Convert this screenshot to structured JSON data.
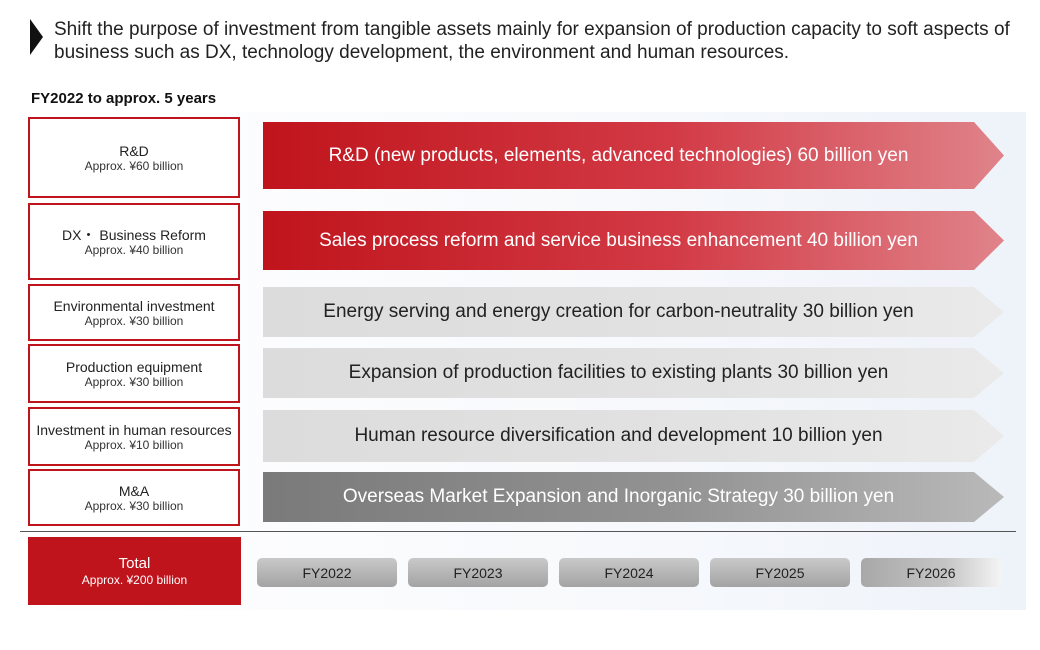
{
  "headline": "Shift the purpose of investment from tangible assets mainly for expansion of production capacity to soft aspects of business such as DX, technology development, the environment and human resources.",
  "period": "FY2022 to approx. 5 years",
  "categories": [
    {
      "name": "R&D",
      "amount": "Approx. ¥60 billion",
      "detail": "R&D (new products, elements, advanced technologies) 60 billion yen",
      "value": 60,
      "color": "#c0141c"
    },
    {
      "name": "DX・ Business Reform",
      "amount": "Approx. ¥40 billion",
      "detail": "Sales process reform and service business enhancement 40 billion yen",
      "value": 40,
      "color": "#c0141c"
    },
    {
      "name": "Environmental investment",
      "amount": "Approx. ¥30 billion",
      "detail": "Energy serving and energy creation for carbon-neutrality 30 billion yen",
      "value": 30,
      "color": "#dcdcdc"
    },
    {
      "name": "Production equipment",
      "amount": "Approx. ¥30  billion",
      "detail": "Expansion of production facilities to existing plants 30 billion yen",
      "value": 30,
      "color": "#dcdcdc"
    },
    {
      "name": "Investment in human resources",
      "amount": "Approx. ¥10 billion",
      "detail": "Human resource diversification and development 10 billion yen",
      "value": 10,
      "color": "#dcdcdc"
    },
    {
      "name": "M&A",
      "amount": "Approx. ¥30 billion",
      "detail": "Overseas Market Expansion and Inorganic Strategy 30 billion yen",
      "value": 30,
      "color": "#7a7a7a"
    }
  ],
  "total": {
    "name": "Total",
    "amount": "Approx. ¥200  billion",
    "value": 200
  },
  "years": [
    "FY2022",
    "FY2023",
    "FY2024",
    "FY2025",
    "FY2026"
  ],
  "colors": {
    "accent_red": "#c0141c",
    "light_gray": "#dcdcdc",
    "dark_gray": "#7a7a7a"
  }
}
